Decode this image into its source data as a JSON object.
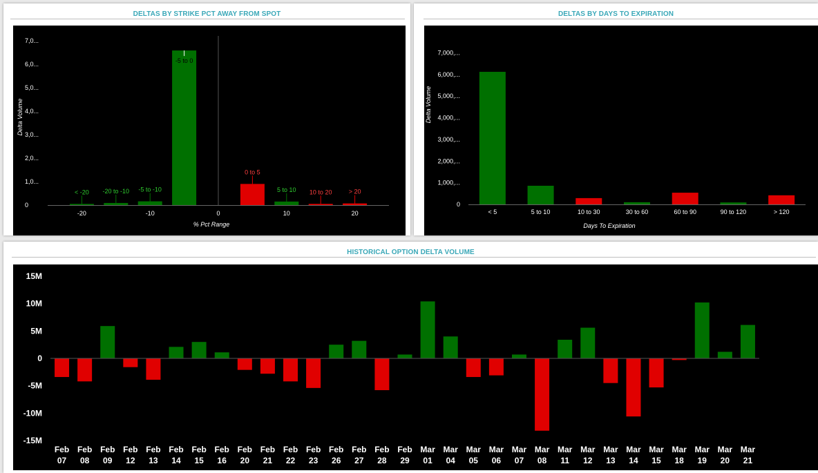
{
  "colors": {
    "positive": "#007000",
    "negative": "#e00000",
    "title": "#3aa8b8",
    "background": "#000000"
  },
  "panels": {
    "strike": {
      "title": "DELTAS BY STRIKE PCT AWAY FROM SPOT"
    },
    "expiration": {
      "title": "DELTAS BY DAYS TO EXPIRATION"
    },
    "history": {
      "title": "HISTORICAL OPTION DELTA VOLUME"
    }
  },
  "chart_data": [
    {
      "id": "strike",
      "type": "bar",
      "title": "DELTAS BY STRIKE PCT AWAY FROM SPOT",
      "xlabel": "% Pct Range",
      "ylabel": "Delta Volume",
      "xlim": [
        -25,
        25
      ],
      "ylim": [
        0,
        7200
      ],
      "x_ticks": [
        {
          "value": -20,
          "label": "-20"
        },
        {
          "value": -10,
          "label": "-10"
        },
        {
          "value": 0,
          "label": "0"
        },
        {
          "value": 10,
          "label": "10"
        },
        {
          "value": 20,
          "label": "20"
        }
      ],
      "y_ticks": [
        {
          "value": 0,
          "label": "0"
        },
        {
          "value": 1000,
          "label": "1,0..."
        },
        {
          "value": 2000,
          "label": "2,0..."
        },
        {
          "value": 3000,
          "label": "3,0..."
        },
        {
          "value": 4000,
          "label": "4,0..."
        },
        {
          "value": 5000,
          "label": "5,0..."
        },
        {
          "value": 6000,
          "label": "6,0..."
        },
        {
          "value": 7000,
          "label": "7,0..."
        }
      ],
      "bars": [
        {
          "label": "< -20",
          "center": -20,
          "value": 50,
          "sign": "positive"
        },
        {
          "label": "-20 to -10",
          "center": -15,
          "value": 90,
          "sign": "positive"
        },
        {
          "label": "-5 to -10",
          "center": -10,
          "value": 160,
          "sign": "positive"
        },
        {
          "label": "-5 to 0",
          "center": -5,
          "value": 6580,
          "sign": "positive"
        },
        {
          "label": "0 to 5",
          "center": 5,
          "value": 900,
          "sign": "negative"
        },
        {
          "label": "5 to 10",
          "center": 10,
          "value": 150,
          "sign": "positive"
        },
        {
          "label": "10 to 20",
          "center": 15,
          "value": 50,
          "sign": "negative"
        },
        {
          "label": "> 20",
          "center": 20,
          "value": 70,
          "sign": "negative"
        }
      ],
      "grid": false,
      "legend": "none"
    },
    {
      "id": "expiration",
      "type": "bar",
      "title": "DELTAS BY DAYS TO EXPIRATION",
      "xlabel": "Days To Expiration",
      "ylabel": "Delta Volume",
      "ylim": [
        0,
        7300
      ],
      "categories": [
        "< 5",
        "5 to 10",
        "10 to 30",
        "30 to 60",
        "60 to 90",
        "90 to 120",
        "> 120"
      ],
      "values": [
        6120,
        860,
        290,
        100,
        540,
        90,
        420
      ],
      "signs": [
        "positive",
        "positive",
        "negative",
        "positive",
        "negative",
        "positive",
        "negative"
      ],
      "y_ticks": [
        {
          "value": 0,
          "label": "0"
        },
        {
          "value": 1000,
          "label": "1,000,..."
        },
        {
          "value": 2000,
          "label": "2,000,..."
        },
        {
          "value": 3000,
          "label": "3,000,..."
        },
        {
          "value": 4000,
          "label": "4,000,..."
        },
        {
          "value": 5000,
          "label": "5,000,..."
        },
        {
          "value": 6000,
          "label": "6,000,..."
        },
        {
          "value": 7000,
          "label": "7,000,..."
        }
      ],
      "grid": false,
      "legend": "none"
    },
    {
      "id": "history",
      "type": "bar",
      "title": "HISTORICAL OPTION DELTA VOLUME",
      "xlabel": "",
      "ylabel": "",
      "ylim": [
        -15.5,
        15.5
      ],
      "y_ticks": [
        {
          "value": 15,
          "label": "15M"
        },
        {
          "value": 10,
          "label": "10M"
        },
        {
          "value": 5,
          "label": "5M"
        },
        {
          "value": 0,
          "label": "0"
        },
        {
          "value": -5,
          "label": "-5M"
        },
        {
          "value": -10,
          "label": "-10M"
        },
        {
          "value": -15,
          "label": "-15M"
        }
      ],
      "categories": [
        {
          "month": "Feb",
          "day": "07"
        },
        {
          "month": "Feb",
          "day": "08"
        },
        {
          "month": "Feb",
          "day": "09"
        },
        {
          "month": "Feb",
          "day": "12"
        },
        {
          "month": "Feb",
          "day": "13"
        },
        {
          "month": "Feb",
          "day": "14"
        },
        {
          "month": "Feb",
          "day": "15"
        },
        {
          "month": "Feb",
          "day": "16"
        },
        {
          "month": "Feb",
          "day": "20"
        },
        {
          "month": "Feb",
          "day": "21"
        },
        {
          "month": "Feb",
          "day": "22"
        },
        {
          "month": "Feb",
          "day": "23"
        },
        {
          "month": "Feb",
          "day": "26"
        },
        {
          "month": "Feb",
          "day": "27"
        },
        {
          "month": "Feb",
          "day": "28"
        },
        {
          "month": "Feb",
          "day": "29"
        },
        {
          "month": "Mar",
          "day": "01"
        },
        {
          "month": "Mar",
          "day": "04"
        },
        {
          "month": "Mar",
          "day": "05"
        },
        {
          "month": "Mar",
          "day": "06"
        },
        {
          "month": "Mar",
          "day": "07"
        },
        {
          "month": "Mar",
          "day": "08"
        },
        {
          "month": "Mar",
          "day": "11"
        },
        {
          "month": "Mar",
          "day": "12"
        },
        {
          "month": "Mar",
          "day": "13"
        },
        {
          "month": "Mar",
          "day": "14"
        },
        {
          "month": "Mar",
          "day": "15"
        },
        {
          "month": "Mar",
          "day": "18"
        },
        {
          "month": "Mar",
          "day": "19"
        },
        {
          "month": "Mar",
          "day": "20"
        },
        {
          "month": "Mar",
          "day": "21"
        }
      ],
      "values": [
        -3.4,
        -4.2,
        5.9,
        -1.6,
        -3.9,
        2.1,
        3.0,
        1.1,
        -2.1,
        -2.8,
        -4.2,
        -5.4,
        2.5,
        3.2,
        -5.8,
        0.7,
        10.4,
        4.0,
        -3.4,
        -3.1,
        0.7,
        -13.2,
        3.4,
        5.6,
        -4.5,
        -10.6,
        -5.3,
        -0.3,
        10.2,
        1.2,
        6.1
      ],
      "unit": "M",
      "grid": false,
      "legend": "none"
    }
  ]
}
